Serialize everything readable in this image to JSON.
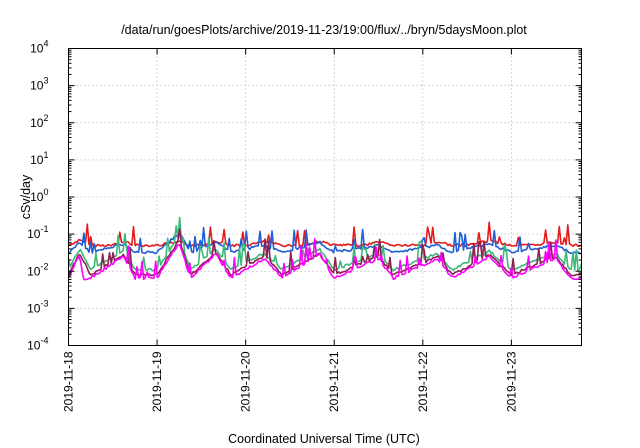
{
  "chart_data": {
    "type": "line",
    "title": "/data/run/goesPlots/archive/2019-11-23/19:00/flux/../bryn/5daysMoon.plot",
    "xlabel": "Coordinated Universal Time (UTC)",
    "ylabel": "cSv/day",
    "yscale": "log",
    "ylim": [
      0.0001,
      10000
    ],
    "yticks": [
      {
        "base": "10",
        "exp": "4"
      },
      {
        "base": "10",
        "exp": "3"
      },
      {
        "base": "10",
        "exp": "2"
      },
      {
        "base": "10",
        "exp": "1"
      },
      {
        "base": "10",
        "exp": "0"
      },
      {
        "base": "10",
        "exp": "-1"
      },
      {
        "base": "10",
        "exp": "-2"
      },
      {
        "base": "10",
        "exp": "-3"
      },
      {
        "base": "10",
        "exp": "-4"
      }
    ],
    "xlim": [
      "2019-11-18",
      "2019-11-23T19:00"
    ],
    "xticks": [
      "2019-11-18",
      "2019-11-19",
      "2019-11-20",
      "2019-11-21",
      "2019-11-22",
      "2019-11-23"
    ],
    "grid": true,
    "series": [
      {
        "color": "#e41a1c",
        "baseline": 0.05,
        "points": [
          [
            "2019-11-18",
            0.05
          ],
          [
            "2019-11-18T03:00",
            0.068
          ],
          [
            "2019-11-18T06:00",
            0.05
          ],
          [
            "2019-11-18T12:00",
            0.05
          ],
          [
            "2019-11-18T15:00",
            0.064
          ],
          [
            "2019-11-18T18:00",
            0.05
          ],
          [
            "2019-11-19",
            0.05
          ],
          [
            "2019-11-19T06:00",
            0.06
          ],
          [
            "2019-11-19T09:00",
            0.05
          ],
          [
            "2019-11-19T12:00",
            0.05
          ],
          [
            "2019-11-19T16:00",
            0.066
          ],
          [
            "2019-11-19T20:00",
            0.05
          ],
          [
            "2019-11-20",
            0.05
          ],
          [
            "2019-11-20T05:00",
            0.062
          ],
          [
            "2019-11-20T10:00",
            0.05
          ],
          [
            "2019-11-20T16:00",
            0.05
          ],
          [
            "2019-11-20T20:00",
            0.064
          ],
          [
            "2019-11-21",
            0.05
          ],
          [
            "2019-11-21T08:00",
            0.05
          ],
          [
            "2019-11-21T12:00",
            0.062
          ],
          [
            "2019-11-21T16:00",
            0.05
          ],
          [
            "2019-11-22",
            0.05
          ],
          [
            "2019-11-22T04:00",
            0.062
          ],
          [
            "2019-11-22T08:00",
            0.05
          ],
          [
            "2019-11-22T12:00",
            0.05
          ],
          [
            "2019-11-22T18:00",
            0.066
          ],
          [
            "2019-11-23",
            0.05
          ],
          [
            "2019-11-23T06:00",
            0.05
          ],
          [
            "2019-11-23T12:00",
            0.062
          ],
          [
            "2019-11-23T16:00",
            0.05
          ],
          [
            "2019-11-23T19:00",
            0.05
          ]
        ]
      },
      {
        "color": "#1f5fd6",
        "baseline": 0.032,
        "points": [
          [
            "2019-11-18",
            0.032
          ],
          [
            "2019-11-18T03:00",
            0.06
          ],
          [
            "2019-11-18T06:00",
            0.032
          ],
          [
            "2019-11-18T15:00",
            0.055
          ],
          [
            "2019-11-18T18:00",
            0.032
          ],
          [
            "2019-11-19",
            0.032
          ],
          [
            "2019-11-19T06:00",
            0.11
          ],
          [
            "2019-11-19T09:00",
            0.032
          ],
          [
            "2019-11-19T16:00",
            0.06
          ],
          [
            "2019-11-19T20:00",
            0.032
          ],
          [
            "2019-11-20T05:00",
            0.05
          ],
          [
            "2019-11-20T10:00",
            0.032
          ],
          [
            "2019-11-20T20:00",
            0.06
          ],
          [
            "2019-11-21",
            0.032
          ],
          [
            "2019-11-21T12:00",
            0.05
          ],
          [
            "2019-11-21T16:00",
            0.032
          ],
          [
            "2019-11-22T04:00",
            0.05
          ],
          [
            "2019-11-22T08:00",
            0.032
          ],
          [
            "2019-11-22T18:00",
            0.055
          ],
          [
            "2019-11-23",
            0.032
          ],
          [
            "2019-11-23T12:00",
            0.05
          ],
          [
            "2019-11-23T16:00",
            0.032
          ],
          [
            "2019-11-23T19:00",
            0.032
          ]
        ]
      },
      {
        "color": "#3cb878",
        "baseline": 0.011,
        "points": [
          [
            "2019-11-18",
            0.011
          ],
          [
            "2019-11-18T03:00",
            0.04
          ],
          [
            "2019-11-18T06:00",
            0.011
          ],
          [
            "2019-11-18T15:00",
            0.035
          ],
          [
            "2019-11-18T18:00",
            0.011
          ],
          [
            "2019-11-19",
            0.011
          ],
          [
            "2019-11-19T06:00",
            0.09
          ],
          [
            "2019-11-19T09:00",
            0.011
          ],
          [
            "2019-11-19T16:00",
            0.04
          ],
          [
            "2019-11-19T20:00",
            0.011
          ],
          [
            "2019-11-20T05:00",
            0.03
          ],
          [
            "2019-11-20T10:00",
            0.011
          ],
          [
            "2019-11-20T20:00",
            0.04
          ],
          [
            "2019-11-21",
            0.011
          ],
          [
            "2019-11-21T12:00",
            0.03
          ],
          [
            "2019-11-21T16:00",
            0.011
          ],
          [
            "2019-11-22T04:00",
            0.03
          ],
          [
            "2019-11-22T08:00",
            0.011
          ],
          [
            "2019-11-22T18:00",
            0.035
          ],
          [
            "2019-11-23",
            0.011
          ],
          [
            "2019-11-23T12:00",
            0.03
          ],
          [
            "2019-11-23T16:00",
            0.011
          ],
          [
            "2019-11-23T19:00",
            0.011
          ]
        ]
      },
      {
        "color": "#8b2252",
        "baseline": 0.008,
        "points": [
          [
            "2019-11-18",
            0.008
          ],
          [
            "2019-11-18T03:00",
            0.03
          ],
          [
            "2019-11-18T06:00",
            0.008
          ],
          [
            "2019-11-18T15:00",
            0.028
          ],
          [
            "2019-11-18T18:00",
            0.008
          ],
          [
            "2019-11-19",
            0.008
          ],
          [
            "2019-11-19T06:00",
            0.07
          ],
          [
            "2019-11-19T09:00",
            0.008
          ],
          [
            "2019-11-19T16:00",
            0.03
          ],
          [
            "2019-11-19T20:00",
            0.008
          ],
          [
            "2019-11-20T05:00",
            0.025
          ],
          [
            "2019-11-20T10:00",
            0.008
          ],
          [
            "2019-11-20T20:00",
            0.03
          ],
          [
            "2019-11-21",
            0.008
          ],
          [
            "2019-11-21T12:00",
            0.025
          ],
          [
            "2019-11-21T16:00",
            0.008
          ],
          [
            "2019-11-22T04:00",
            0.025
          ],
          [
            "2019-11-22T08:00",
            0.008
          ],
          [
            "2019-11-22T18:00",
            0.028
          ],
          [
            "2019-11-23",
            0.008
          ],
          [
            "2019-11-23T12:00",
            0.025
          ],
          [
            "2019-11-23T16:00",
            0.008
          ],
          [
            "2019-11-23T19:00",
            0.008
          ]
        ]
      },
      {
        "color": "#ff00ff",
        "baseline": 0.0065,
        "points": [
          [
            "2019-11-18",
            0.0065
          ],
          [
            "2019-11-18T03:00",
            0.03
          ],
          [
            "2019-11-18T04:00",
            0.006
          ],
          [
            "2019-11-18T06:00",
            0.0065
          ],
          [
            "2019-11-18T15:00",
            0.025
          ],
          [
            "2019-11-18T18:00",
            0.0065
          ],
          [
            "2019-11-19",
            0.0065
          ],
          [
            "2019-11-19T06:00",
            0.06
          ],
          [
            "2019-11-19T09:00",
            0.0065
          ],
          [
            "2019-11-19T16:00",
            0.03
          ],
          [
            "2019-11-19T20:00",
            0.0065
          ],
          [
            "2019-11-20T05:00",
            0.022
          ],
          [
            "2019-11-20T10:00",
            0.0065
          ],
          [
            "2019-11-20T20:00",
            0.03
          ],
          [
            "2019-11-21",
            0.0065
          ],
          [
            "2019-11-21T12:00",
            0.022
          ],
          [
            "2019-11-21T16:00",
            0.0065
          ],
          [
            "2019-11-22T04:00",
            0.022
          ],
          [
            "2019-11-22T08:00",
            0.0065
          ],
          [
            "2019-11-22T18:00",
            0.025
          ],
          [
            "2019-11-23",
            0.0065
          ],
          [
            "2019-11-23T12:00",
            0.022
          ],
          [
            "2019-11-23T16:00",
            0.0065
          ],
          [
            "2019-11-23T19:00",
            0.0065
          ]
        ]
      }
    ]
  }
}
